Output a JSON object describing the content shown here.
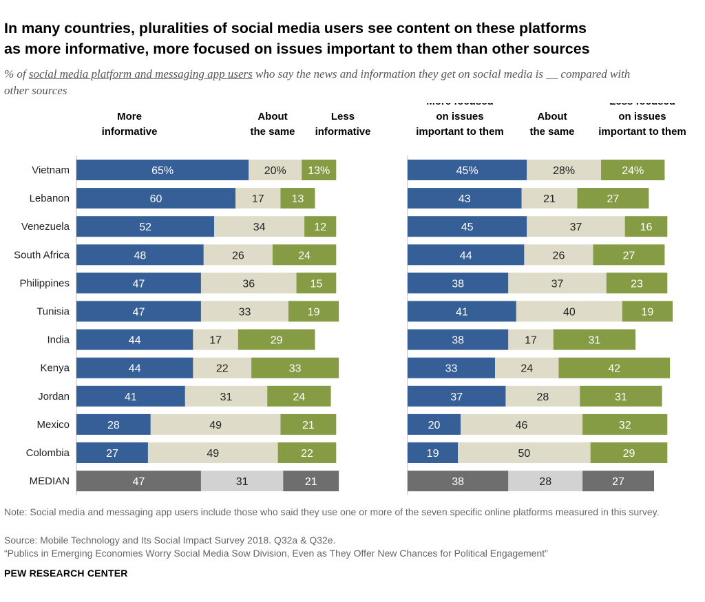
{
  "title_line1": "In many countries, pluralities of social media users see content on these platforms",
  "title_line2": "as more informative, more focused on issues important to them than other sources",
  "subtitle_prefix": "% of ",
  "subtitle_underlined": "social media platform and messaging app users",
  "subtitle_suffix": " who say the news and information they get on social media is __ compared with other sources",
  "chart_data": {
    "type": "bar",
    "orientation": "horizontal-stacked",
    "categories": [
      "Vietnam",
      "Lebanon",
      "Venezuela",
      "South Africa",
      "Philippines",
      "Tunisia",
      "India",
      "Kenya",
      "Jordan",
      "Mexico",
      "Colombia",
      "MEDIAN"
    ],
    "panels": [
      {
        "name": "informative",
        "series": [
          {
            "name": "More informative",
            "label_lines": [
              "More",
              "informative"
            ],
            "values": [
              65,
              60,
              52,
              48,
              47,
              47,
              44,
              44,
              41,
              28,
              27,
              47
            ]
          },
          {
            "name": "About the same",
            "label_lines": [
              "About",
              "the same"
            ],
            "values": [
              20,
              17,
              34,
              26,
              36,
              33,
              17,
              22,
              31,
              49,
              49,
              31
            ]
          },
          {
            "name": "Less informative",
            "label_lines": [
              "Less",
              "informative"
            ],
            "values": [
              13,
              13,
              12,
              24,
              15,
              19,
              29,
              33,
              24,
              21,
              22,
              21
            ]
          }
        ]
      },
      {
        "name": "focused",
        "series": [
          {
            "name": "More focused on issues important to them",
            "label_lines": [
              "More focused",
              "on issues",
              "important to them"
            ],
            "values": [
              45,
              43,
              45,
              44,
              38,
              41,
              38,
              33,
              37,
              20,
              19,
              38
            ]
          },
          {
            "name": "About the same",
            "label_lines": [
              "About",
              "the same"
            ],
            "values": [
              28,
              21,
              37,
              26,
              37,
              40,
              17,
              24,
              28,
              46,
              50,
              28
            ]
          },
          {
            "name": "Less focused on issues important to them",
            "label_lines": [
              "Less focused",
              "on issues",
              "important to them"
            ],
            "values": [
              24,
              27,
              16,
              27,
              23,
              19,
              31,
              42,
              31,
              32,
              29,
              27
            ]
          }
        ]
      }
    ],
    "colors": {
      "more": "#355f96",
      "same": "#dedbc8",
      "less": "#869c44",
      "median_more": "#6e6e6e",
      "median_same": "#d2d2d2",
      "median_less": "#6e6e6e"
    },
    "percent_row": "Vietnam"
  },
  "footer": {
    "note": "Note: Social media and messaging app users include those who said they use one or more of the seven specific online platforms measured in this survey.",
    "source": "Source: Mobile Technology and Its Social Impact Survey 2018. Q32a & Q32e.",
    "publication": "“Publics in Emerging Economies Worry Social Media Sow Division, Even as They Offer New Chances for Political Engagement”",
    "brand": "PEW RESEARCH CENTER"
  }
}
